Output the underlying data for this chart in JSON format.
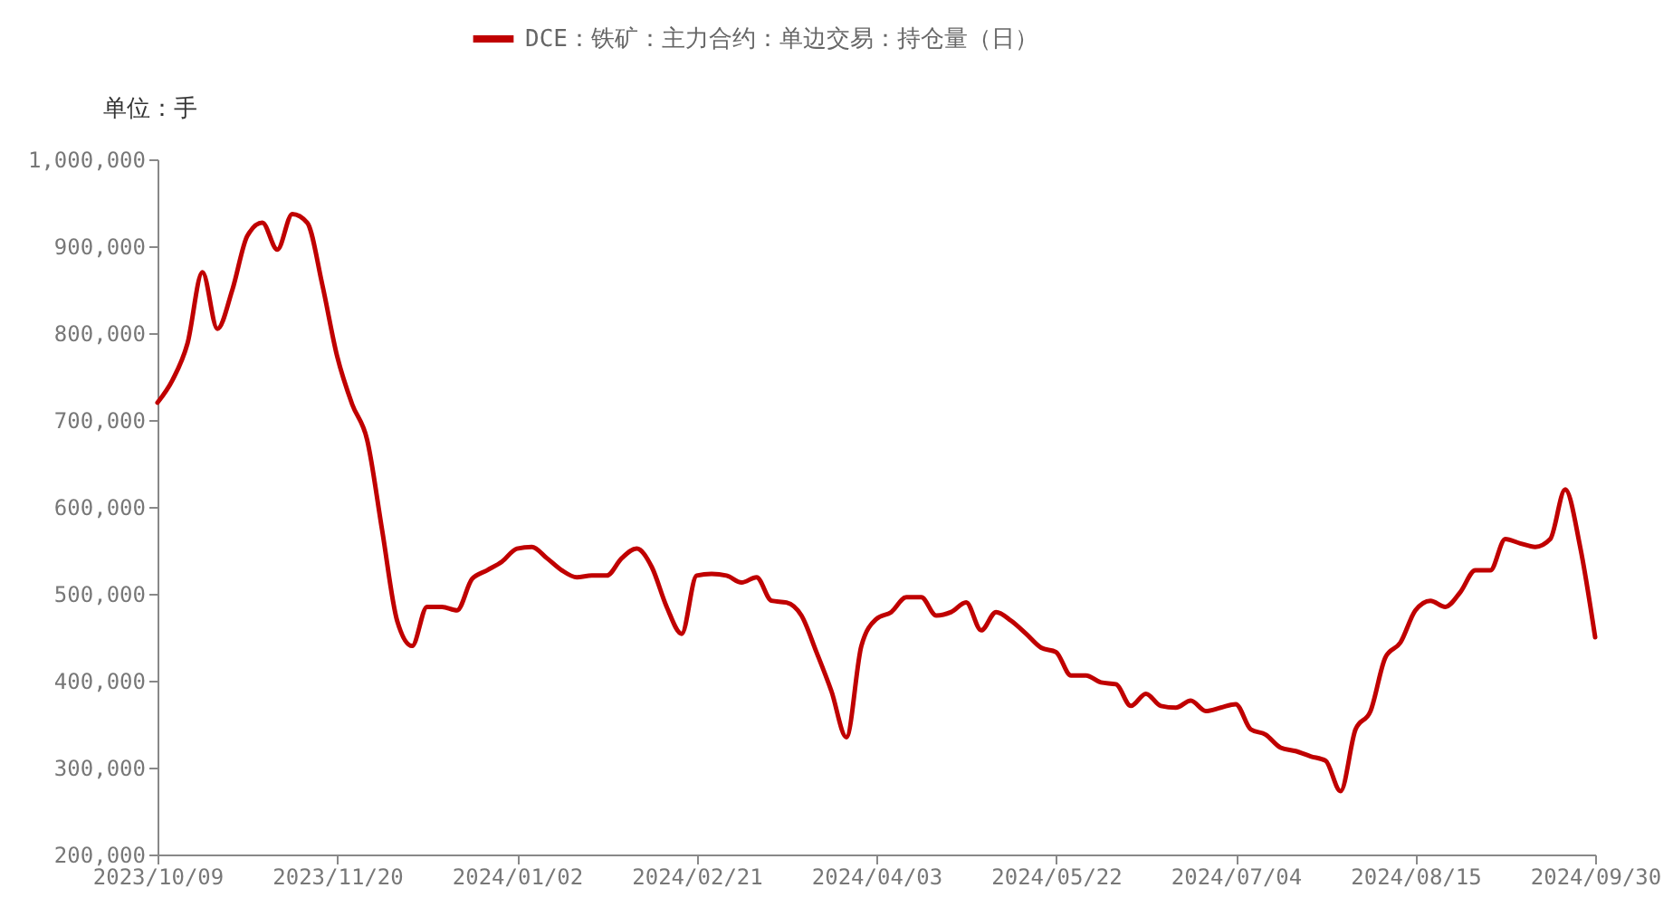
{
  "chart_data": {
    "type": "line",
    "annotations": [
      "单位：手"
    ],
    "categories": [
      "2023/10/09",
      null,
      null,
      null,
      null,
      null,
      null,
      null,
      null,
      null,
      null,
      null,
      "2023/11/20",
      null,
      null,
      null,
      null,
      null,
      null,
      null,
      null,
      null,
      null,
      null,
      "2024/01/02",
      null,
      null,
      null,
      null,
      null,
      null,
      null,
      null,
      null,
      null,
      null,
      "2024/02/21",
      null,
      null,
      null,
      null,
      null,
      null,
      null,
      null,
      null,
      null,
      null,
      "2024/04/03",
      null,
      null,
      null,
      null,
      null,
      null,
      null,
      null,
      null,
      null,
      null,
      "2024/05/22",
      null,
      null,
      null,
      null,
      null,
      null,
      null,
      null,
      null,
      null,
      null,
      "2024/07/04",
      null,
      null,
      null,
      null,
      null,
      null,
      null,
      null,
      null,
      null,
      null,
      "2024/08/15",
      null,
      null,
      null,
      null,
      null,
      null,
      null,
      null,
      null,
      null,
      null,
      "2024/09/30"
    ],
    "series": [
      {
        "name": "DCE：铁矿：主力合约：单边交易：持仓量（日）",
        "color": "#c00000",
        "values": [
          720000,
          746000,
          788000,
          870000,
          805000,
          850000,
          912000,
          927000,
          896000,
          937000,
          927000,
          856000,
          773000,
          718000,
          677000,
          573000,
          469000,
          440000,
          485000,
          485000,
          481000,
          517000,
          527000,
          537000,
          552000,
          554000,
          541000,
          527000,
          519000,
          521000,
          521000,
          541000,
          552000,
          531000,
          485000,
          454000,
          521000,
          523000,
          521000,
          513000,
          519000,
          492000,
          490000,
          475000,
          433000,
          388000,
          335000,
          440000,
          471000,
          479000,
          496000,
          496000,
          475000,
          479000,
          490000,
          458000,
          479000,
          469000,
          454000,
          438000,
          433000,
          406000,
          406000,
          398000,
          396000,
          371000,
          385000,
          371000,
          369000,
          377000,
          365000,
          369000,
          373000,
          344000,
          338000,
          323000,
          319000,
          313000,
          308000,
          273000,
          344000,
          365000,
          427000,
          444000,
          481000,
          492000,
          485000,
          502000,
          527000,
          527000,
          563000,
          558000,
          554000,
          563000,
          620000,
          554000,
          450000
        ]
      }
    ],
    "ylim": [
      200000,
      1000000
    ],
    "yticks": [
      {
        "value": 200000,
        "label": "200,000"
      },
      {
        "value": 300000,
        "label": "300,000"
      },
      {
        "value": 400000,
        "label": "400,000"
      },
      {
        "value": 500000,
        "label": "500,000"
      },
      {
        "value": 600000,
        "label": "600,000"
      },
      {
        "value": 700000,
        "label": "700,000"
      },
      {
        "value": 800000,
        "label": "800,000"
      },
      {
        "value": 900000,
        "label": "900,000"
      },
      {
        "value": 1000000,
        "label": "1,000,000"
      }
    ],
    "grid": false,
    "legend": "top",
    "marker": "none",
    "line_style": "solid"
  }
}
